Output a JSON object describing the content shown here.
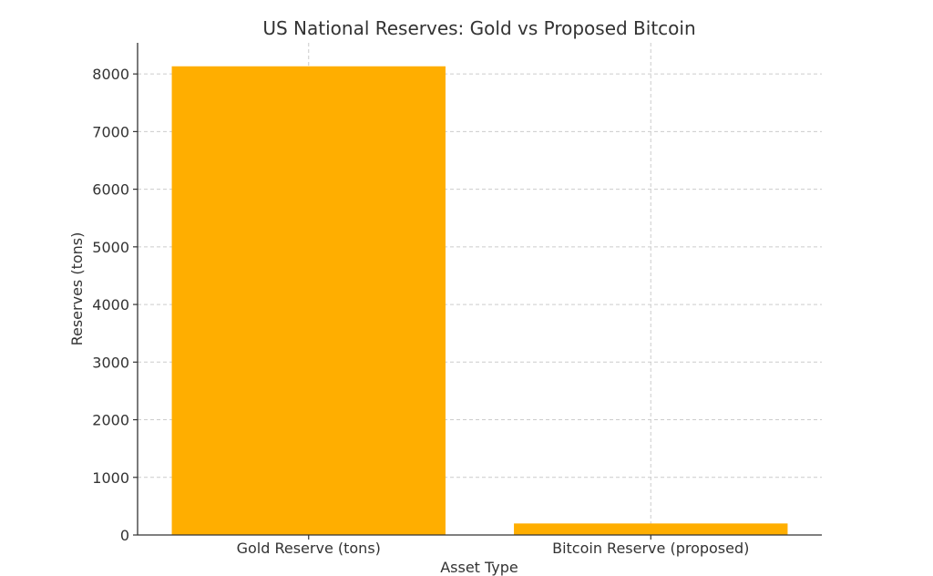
{
  "chart_data": {
    "type": "bar",
    "title": "US National Reserves: Gold vs Proposed Bitcoin",
    "xlabel": "Asset Type",
    "ylabel": "Reserves (tons)",
    "categories": [
      "Gold Reserve (tons)",
      "Bitcoin Reserve (proposed)"
    ],
    "values": [
      8133,
      200
    ],
    "ylim": [
      0,
      8540
    ],
    "yticks": [
      0,
      1000,
      2000,
      3000,
      4000,
      5000,
      6000,
      7000,
      8000
    ],
    "grid": true,
    "bar_color": "#FFAE00"
  }
}
